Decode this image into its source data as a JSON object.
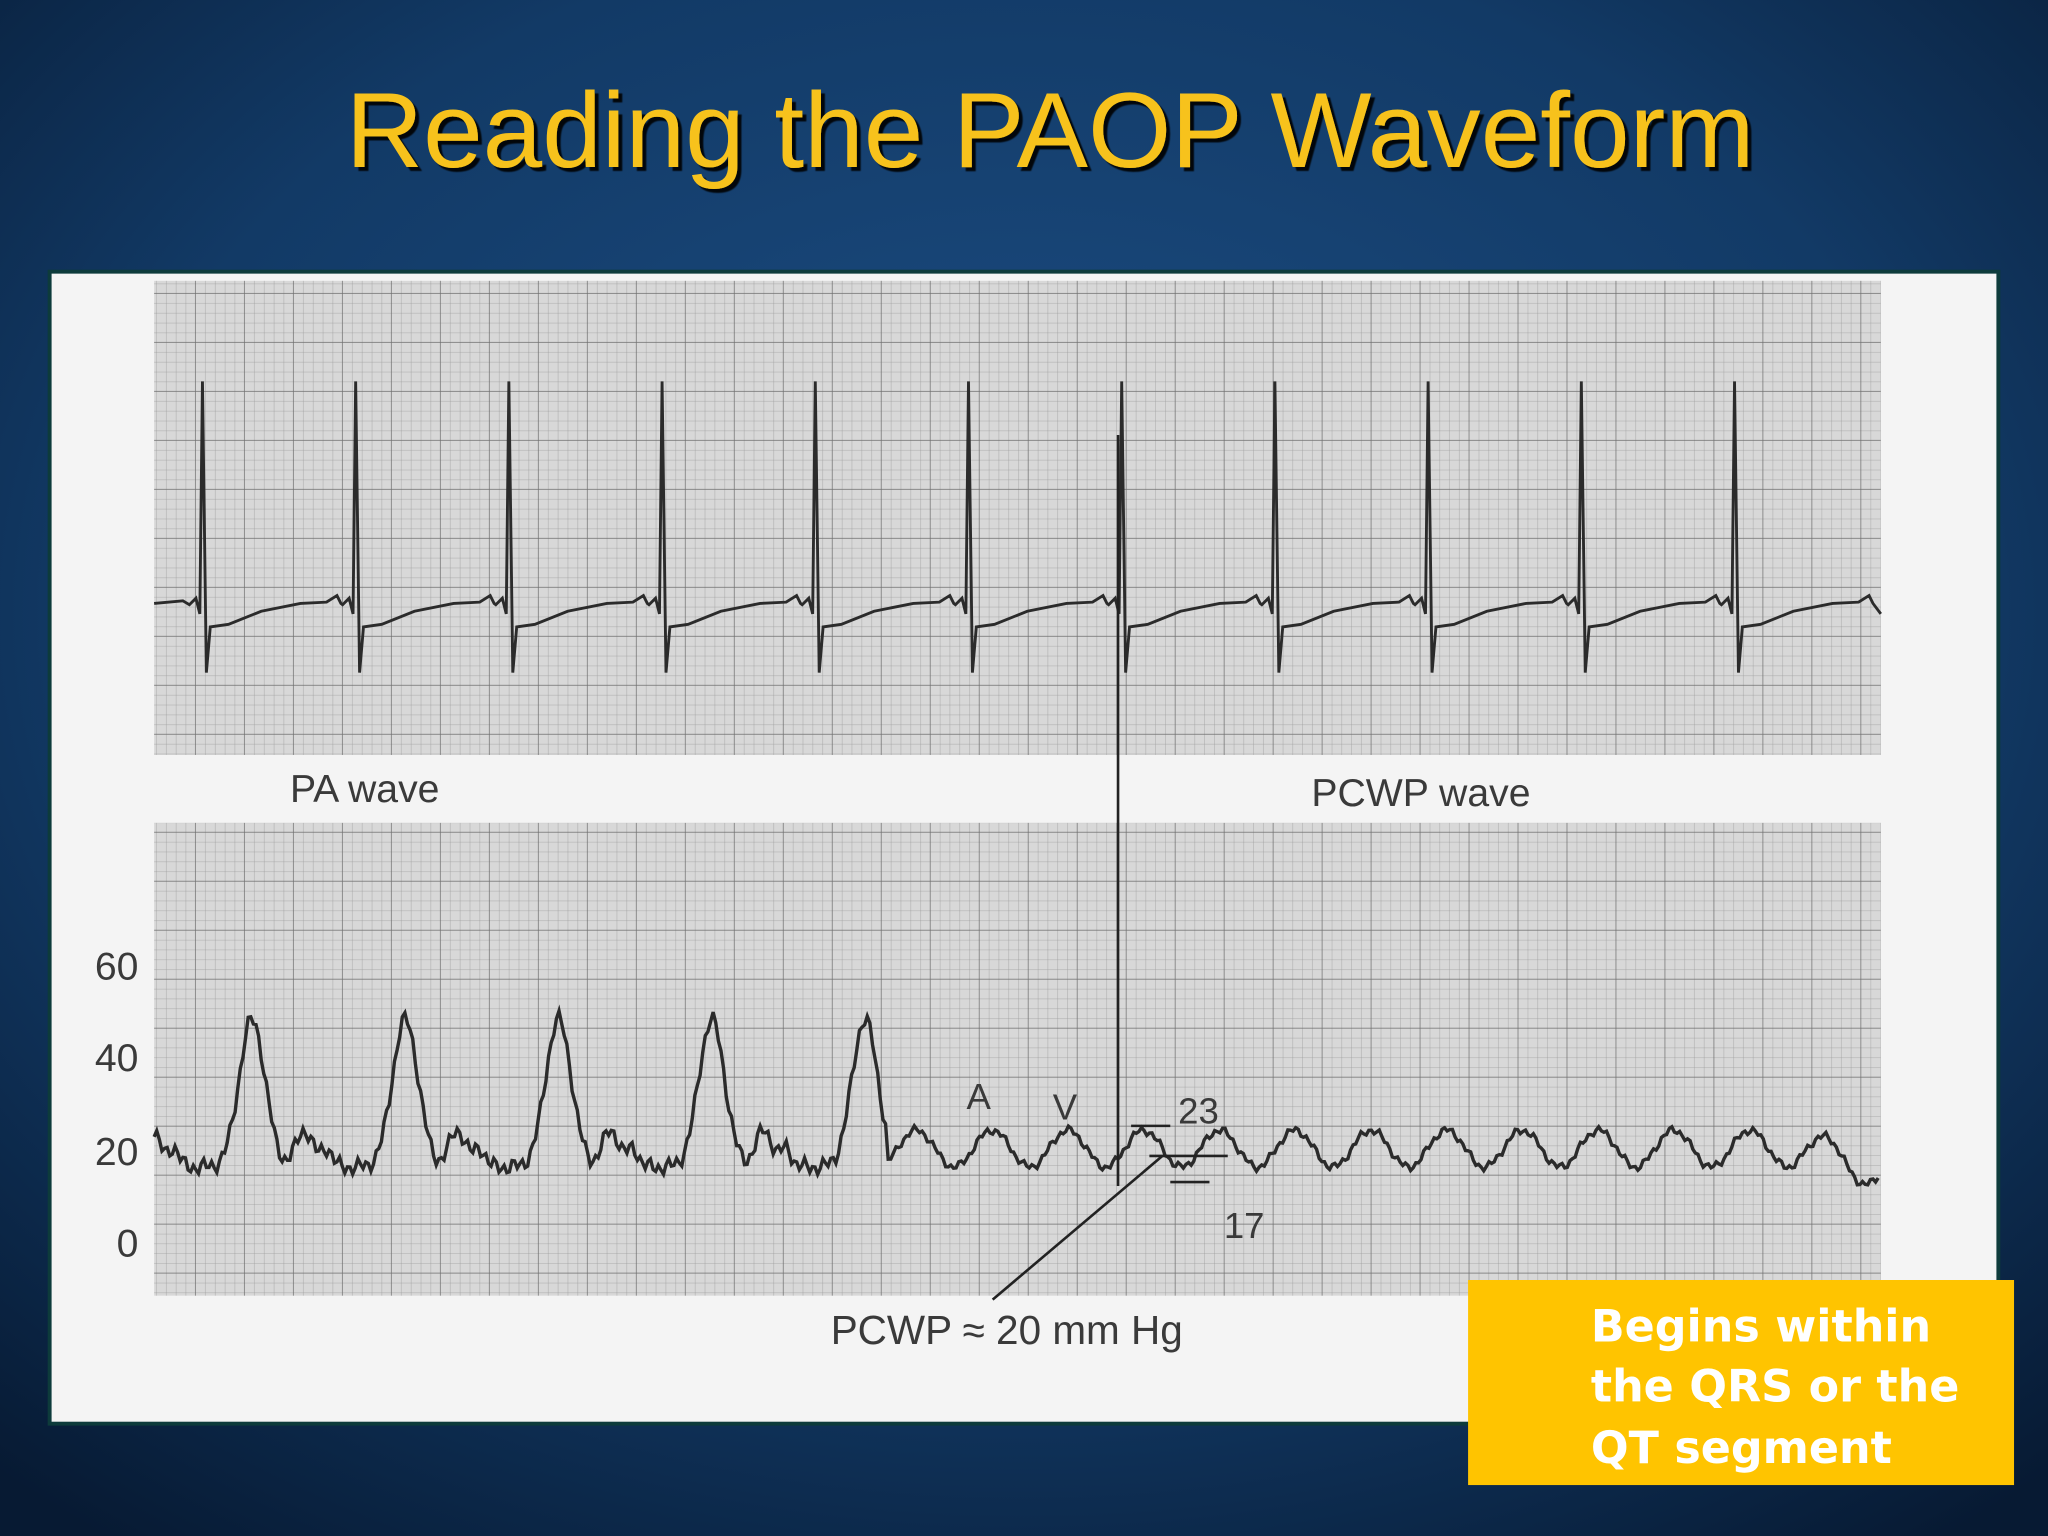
{
  "header": {
    "title": "Reading the PAOP Waveform"
  },
  "figure": {
    "upper_label_left": "PA wave",
    "upper_label_right": "PCWP wave",
    "scale_labels": [
      "60",
      "40",
      "20",
      "0"
    ],
    "wave_labels": [
      "A",
      "V"
    ],
    "reading_high": "23",
    "reading_low": "17",
    "result": "PCWP ≈ 20 mm Hg"
  },
  "callout": {
    "lines": [
      "Begins within",
      "the QRS or the",
      "QT segment"
    ]
  }
}
